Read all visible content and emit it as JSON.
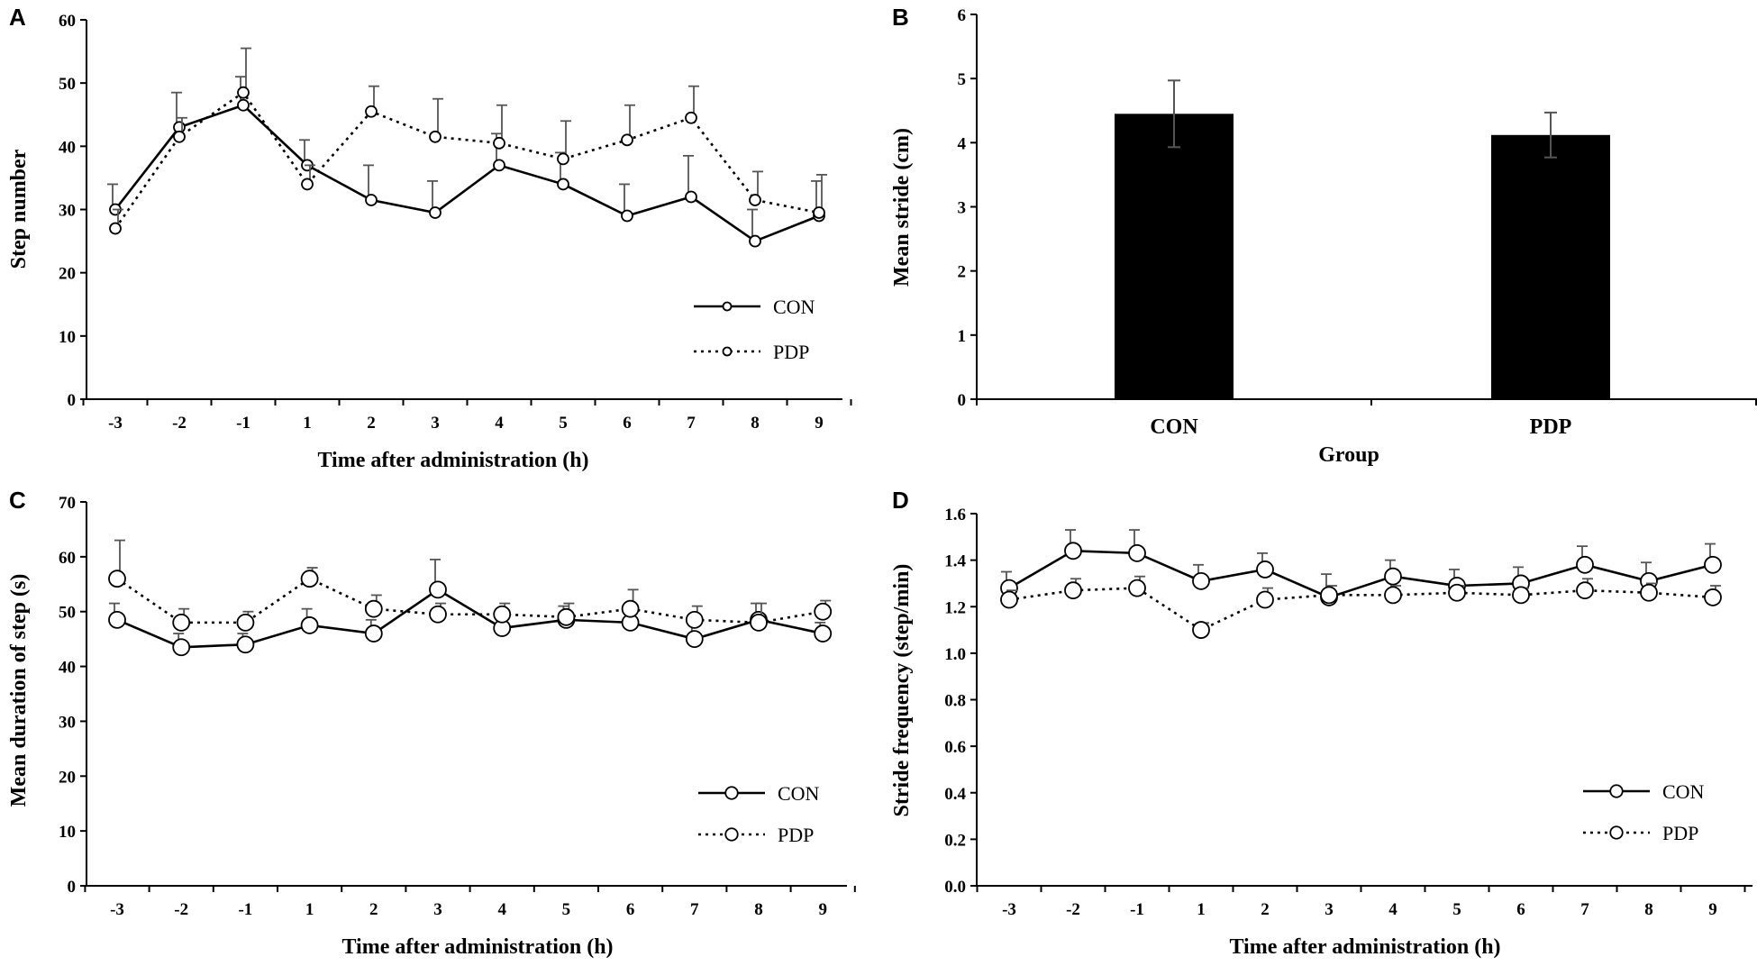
{
  "chart_data": [
    {
      "panel": "A",
      "type": "line",
      "xlabel": "Time after administration (h)",
      "ylabel": "Step number",
      "categories": [
        "-3",
        "-2",
        "-1",
        "1",
        "2",
        "3",
        "4",
        "5",
        "6",
        "7",
        "8",
        "9"
      ],
      "ylim": [
        0,
        60
      ],
      "yticks": [
        "0",
        "10",
        "20",
        "30",
        "40",
        "50",
        "60"
      ],
      "series": [
        {
          "name": "CON",
          "style": "solid",
          "values": [
            30,
            43,
            46.5,
            37,
            31.5,
            29.5,
            37,
            34,
            29,
            32,
            25,
            29
          ],
          "errors": [
            4,
            5.5,
            4.5,
            4,
            5.5,
            5,
            5,
            5,
            5,
            6.5,
            5,
            5.5
          ]
        },
        {
          "name": "PDP",
          "style": "dotted",
          "values": [
            27,
            41.5,
            48.5,
            34,
            45.5,
            41.5,
            40.5,
            38,
            41,
            44.5,
            31.5,
            29.5
          ],
          "errors": [
            3,
            3,
            7,
            3,
            4,
            6,
            6,
            6,
            5.5,
            5,
            4.5,
            6
          ]
        }
      ],
      "legend": [
        "CON",
        "PDP"
      ]
    },
    {
      "panel": "B",
      "type": "bar",
      "xlabel": "Group",
      "ylabel": "Mean stride (cm)",
      "categories": [
        "CON",
        "PDP"
      ],
      "values": [
        4.45,
        4.12
      ],
      "errors": [
        0.52,
        0.35
      ],
      "ylim": [
        0,
        6
      ],
      "yticks": [
        "0",
        "1",
        "2",
        "3",
        "4",
        "5",
        "6"
      ],
      "bar_color": "#000000"
    },
    {
      "panel": "C",
      "type": "line",
      "xlabel": "Time after administration (h)",
      "ylabel": "Mean duration of step (s)",
      "categories": [
        "-3",
        "-2",
        "-1",
        "1",
        "2",
        "3",
        "4",
        "5",
        "6",
        "7",
        "8",
        "9"
      ],
      "ylim": [
        0,
        70
      ],
      "yticks": [
        "0",
        "10",
        "20",
        "30",
        "40",
        "50",
        "60",
        "70"
      ],
      "series": [
        {
          "name": "CON",
          "style": "solid",
          "values": [
            48.5,
            43.5,
            44,
            47.5,
            46,
            54,
            47,
            48.5,
            48,
            45,
            48.5,
            46
          ],
          "errors": [
            3,
            2.5,
            2,
            3,
            2.5,
            5.5,
            2.5,
            2.5,
            2,
            3,
            3,
            2
          ]
        },
        {
          "name": "PDP",
          "style": "dotted",
          "values": [
            56,
            48,
            48,
            56,
            50.5,
            49.5,
            49.5,
            49,
            50.5,
            48.5,
            48,
            50
          ],
          "errors": [
            7,
            2.5,
            2,
            2,
            2.5,
            2,
            2,
            2.5,
            3.5,
            2.5,
            3.5,
            2
          ]
        }
      ],
      "legend": [
        "CON",
        "PDP"
      ]
    },
    {
      "panel": "D",
      "type": "line",
      "xlabel": "Time after administration (h)",
      "ylabel": "Stride frequency (step/min)",
      "categories": [
        "-3",
        "-2",
        "-1",
        "1",
        "2",
        "3",
        "4",
        "5",
        "6",
        "7",
        "8",
        "9"
      ],
      "ylim": [
        0,
        1.6
      ],
      "yticks": [
        "0.0",
        "0.2",
        "0.4",
        "0.6",
        "0.8",
        "1.0",
        "1.2",
        "1.4",
        "1.6"
      ],
      "series": [
        {
          "name": "CON",
          "style": "solid",
          "values": [
            1.28,
            1.44,
            1.43,
            1.31,
            1.36,
            1.24,
            1.33,
            1.29,
            1.3,
            1.38,
            1.31,
            1.38
          ],
          "errors": [
            0.07,
            0.09,
            0.1,
            0.07,
            0.07,
            0.1,
            0.07,
            0.07,
            0.07,
            0.08,
            0.08,
            0.09
          ]
        },
        {
          "name": "PDP",
          "style": "dotted",
          "values": [
            1.23,
            1.27,
            1.28,
            1.1,
            1.23,
            1.25,
            1.25,
            1.26,
            1.25,
            1.27,
            1.26,
            1.24
          ],
          "errors": [
            0.04,
            0.05,
            0.05,
            0.03,
            0.05,
            0.04,
            0.04,
            0.03,
            0.03,
            0.05,
            0.04,
            0.05
          ]
        }
      ],
      "legend": [
        "CON",
        "PDP"
      ]
    }
  ]
}
